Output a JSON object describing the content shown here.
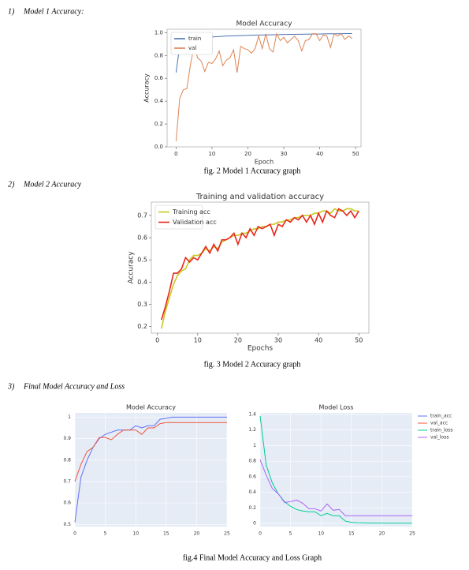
{
  "sections": [
    {
      "number": "1)",
      "heading": "Model 1 Accuracy:",
      "caption": "fig. 2 Model 1 Accuracy graph",
      "charts": [
        {
          "type": "line",
          "title": "Model Accuracy",
          "xlabel": "Epoch",
          "ylabel": "Accuracy",
          "legend": "upper left",
          "background": "#ffffff",
          "grid": false,
          "x": [
            0,
            1,
            2,
            3,
            4,
            5,
            6,
            7,
            8,
            9,
            10,
            11,
            12,
            13,
            14,
            15,
            16,
            17,
            18,
            19,
            20,
            21,
            22,
            23,
            24,
            25,
            26,
            27,
            28,
            29,
            30,
            31,
            32,
            33,
            34,
            35,
            36,
            37,
            38,
            39,
            40,
            41,
            42,
            43,
            44,
            45,
            46,
            47,
            48,
            49
          ],
          "xlim": [
            -2.5,
            51.5
          ],
          "xticks": [
            0,
            10,
            20,
            30,
            40,
            50
          ],
          "ylim": [
            0,
            1.03
          ],
          "yticks": [
            {
              "value": 0,
              "label": "0.0"
            },
            0.2,
            0.4,
            0.6,
            0.8,
            {
              "value": 1,
              "label": "1.0"
            }
          ],
          "series": [
            {
              "name": "train",
              "color": "#4c72b0",
              "values": [
                0.65,
                0.88,
                0.92,
                0.93,
                0.94,
                0.945,
                0.95,
                0.955,
                0.958,
                0.96,
                0.962,
                0.964,
                0.966,
                0.968,
                0.97,
                0.971,
                0.972,
                0.973,
                0.974,
                0.975,
                0.976,
                0.977,
                0.978,
                0.979,
                0.98,
                0.98,
                0.981,
                0.982,
                0.982,
                0.983,
                0.984,
                0.984,
                0.985,
                0.985,
                0.986,
                0.986,
                0.987,
                0.987,
                0.988,
                0.988,
                0.988,
                0.989,
                0.989,
                0.99,
                0.99,
                0.99,
                0.991,
                0.991,
                0.992,
                0.992
              ]
            },
            {
              "name": "val",
              "color": "#dd8452",
              "values": [
                0.05,
                0.42,
                0.5,
                0.51,
                0.72,
                0.88,
                0.78,
                0.75,
                0.66,
                0.74,
                0.73,
                0.77,
                0.84,
                0.71,
                0.76,
                0.78,
                0.85,
                0.65,
                0.88,
                0.86,
                0.85,
                0.82,
                0.86,
                0.97,
                0.86,
                0.99,
                0.86,
                0.83,
                0.99,
                0.93,
                0.96,
                0.91,
                0.94,
                0.97,
                0.93,
                0.84,
                0.93,
                0.94,
                0.99,
                0.99,
                0.93,
                0.98,
                0.97,
                0.87,
                0.99,
                0.97,
                0.99,
                0.94,
                0.97,
                0.95
              ]
            }
          ]
        }
      ]
    },
    {
      "number": "2)",
      "heading": "Model 2 Accuracy",
      "caption": "fig. 3 Model 2 Accuracy graph",
      "charts": [
        {
          "type": "line",
          "title": "Training and validation accuracy",
          "xlabel": "Epochs",
          "ylabel": "Accuracy",
          "legend": "upper left",
          "background": "#ffffff",
          "grid": false,
          "x": [
            1,
            2,
            3,
            4,
            5,
            6,
            7,
            8,
            9,
            10,
            11,
            12,
            13,
            14,
            15,
            16,
            17,
            18,
            19,
            20,
            21,
            22,
            23,
            24,
            25,
            26,
            27,
            28,
            29,
            30,
            31,
            32,
            33,
            34,
            35,
            36,
            37,
            38,
            39,
            40,
            41,
            42,
            43,
            44,
            45,
            46,
            47,
            48,
            49,
            50
          ],
          "xlim": [
            -1.5,
            52.5
          ],
          "xticks": [
            0,
            10,
            20,
            30,
            40,
            50
          ],
          "ylim": [
            0.17,
            0.76
          ],
          "yticks": [
            0.2,
            0.3,
            0.4,
            0.5,
            0.6,
            0.7
          ],
          "series": [
            {
              "name": "Training acc",
              "color": "#c8c81e",
              "values": [
                0.19,
                0.27,
                0.33,
                0.39,
                0.43,
                0.45,
                0.46,
                0.5,
                0.52,
                0.52,
                0.53,
                0.55,
                0.54,
                0.56,
                0.55,
                0.58,
                0.59,
                0.6,
                0.61,
                0.61,
                0.62,
                0.62,
                0.63,
                0.64,
                0.64,
                0.65,
                0.65,
                0.66,
                0.66,
                0.67,
                0.67,
                0.68,
                0.68,
                0.69,
                0.69,
                0.7,
                0.7,
                0.7,
                0.71,
                0.71,
                0.72,
                0.72,
                0.71,
                0.73,
                0.72,
                0.72,
                0.73,
                0.73,
                0.72,
                0.72
              ]
            },
            {
              "name": "Validation acc",
              "color": "#e8281e",
              "values": [
                0.23,
                0.29,
                0.36,
                0.44,
                0.44,
                0.46,
                0.51,
                0.49,
                0.51,
                0.5,
                0.53,
                0.56,
                0.53,
                0.57,
                0.54,
                0.59,
                0.59,
                0.6,
                0.62,
                0.57,
                0.62,
                0.6,
                0.64,
                0.61,
                0.65,
                0.64,
                0.65,
                0.66,
                0.61,
                0.66,
                0.65,
                0.68,
                0.67,
                0.69,
                0.68,
                0.7,
                0.67,
                0.7,
                0.66,
                0.71,
                0.67,
                0.72,
                0.7,
                0.69,
                0.73,
                0.72,
                0.7,
                0.72,
                0.69,
                0.72
              ]
            }
          ]
        }
      ]
    },
    {
      "number": "3)",
      "heading": "Final Model Accuracy and Loss",
      "caption": "fig.4  Final Model Accuracy and Loss Graph",
      "charts": [
        {
          "type": "line",
          "title": "Model Accuracy",
          "legend": "right",
          "background": "#e5ecf6",
          "grid": true,
          "x": [
            0,
            1,
            2,
            3,
            4,
            5,
            6,
            7,
            8,
            9,
            10,
            11,
            12,
            13,
            14,
            15,
            16,
            17,
            18,
            19,
            20,
            21,
            22,
            23,
            24,
            25
          ],
          "xlim": [
            0,
            25
          ],
          "xticks": [
            0,
            5,
            10,
            15,
            20,
            25
          ],
          "ylim": [
            0.49,
            1.02
          ],
          "yticks": [
            0.5,
            0.6,
            0.7,
            0.8,
            0.9,
            1
          ],
          "series": [
            {
              "name": "train_acc",
              "color": "#636efa",
              "values": [
                0.51,
                0.72,
                0.8,
                0.86,
                0.9,
                0.92,
                0.93,
                0.94,
                0.94,
                0.94,
                0.96,
                0.95,
                0.96,
                0.96,
                0.99,
                0.995,
                1,
                1,
                1,
                1,
                1,
                1,
                1,
                1,
                1,
                1
              ]
            },
            {
              "name": "val_acc",
              "color": "#ef553b",
              "values": [
                0.7,
                0.78,
                0.84,
                0.86,
                0.905,
                0.905,
                0.895,
                0.92,
                0.94,
                0.94,
                0.94,
                0.92,
                0.95,
                0.95,
                0.97,
                0.975,
                0.975,
                0.975,
                0.975,
                0.975,
                0.975,
                0.975,
                0.975,
                0.975,
                0.975,
                0.975
              ]
            }
          ]
        },
        {
          "type": "line",
          "title": "Model Loss",
          "legend": "right",
          "background": "#e5ecf6",
          "grid": true,
          "x": [
            0,
            1,
            2,
            3,
            4,
            5,
            6,
            7,
            8,
            9,
            10,
            11,
            12,
            13,
            14,
            15,
            16,
            17,
            18,
            19,
            20,
            21,
            22,
            23,
            24,
            25
          ],
          "xlim": [
            0,
            25
          ],
          "xticks": [
            0,
            5,
            10,
            15,
            20,
            25
          ],
          "ylim": [
            -0.04,
            1.42
          ],
          "yticks": [
            0,
            0.2,
            0.4,
            0.6,
            0.8,
            1,
            1.2,
            1.4
          ],
          "series": [
            {
              "name": "train_loss",
              "color": "#00cc96",
              "values": [
                1.38,
                0.75,
                0.52,
                0.38,
                0.28,
                0.22,
                0.18,
                0.16,
                0.15,
                0.15,
                0.1,
                0.13,
                0.1,
                0.1,
                0.03,
                0.015,
                0.01,
                0.008,
                0.006,
                0.005,
                0.005,
                0.004,
                0.004,
                0.004,
                0.004,
                0.004
              ]
            },
            {
              "name": "val_loss",
              "color": "#ab63fa",
              "values": [
                0.82,
                0.62,
                0.45,
                0.38,
                0.27,
                0.28,
                0.3,
                0.26,
                0.19,
                0.19,
                0.16,
                0.25,
                0.17,
                0.18,
                0.1,
                0.1,
                0.1,
                0.1,
                0.1,
                0.1,
                0.1,
                0.1,
                0.1,
                0.1,
                0.1,
                0.1
              ]
            }
          ]
        }
      ]
    }
  ]
}
